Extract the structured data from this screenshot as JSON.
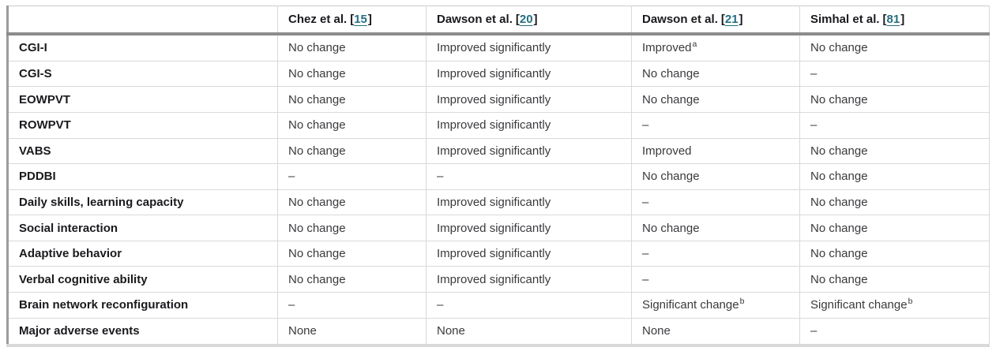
{
  "colors": {
    "citation_link": "#256f80",
    "header_rule": "#8c8c8c",
    "row_rule": "#d9d9d9",
    "left_edge_rule": "#9c9c9c",
    "bottom_rule": "#d9d9d9",
    "label_text": "#1a1a1e",
    "cell_text": "#3a3a3e",
    "background": "#ffffff"
  },
  "table": {
    "header": {
      "measure_column_label": "",
      "citation_brackets": [
        "[",
        "]"
      ],
      "studies": [
        {
          "author": "Chez et al.",
          "citation": "15"
        },
        {
          "author": "Dawson et al.",
          "citation": "20"
        },
        {
          "author": "Dawson et al.",
          "citation": "21"
        },
        {
          "author": "Simhal et al.",
          "citation": "81"
        }
      ]
    },
    "rows": [
      {
        "measure": "CGI-I",
        "cells": [
          {
            "text": "No change"
          },
          {
            "text": "Improved significantly"
          },
          {
            "text": "Improved",
            "sup": "a"
          },
          {
            "text": "No change"
          }
        ]
      },
      {
        "measure": "CGI-S",
        "cells": [
          {
            "text": "No change"
          },
          {
            "text": "Improved significantly"
          },
          {
            "text": "No change"
          },
          {
            "text": "–"
          }
        ]
      },
      {
        "measure": "EOWPVT",
        "cells": [
          {
            "text": "No change"
          },
          {
            "text": "Improved significantly"
          },
          {
            "text": "No change"
          },
          {
            "text": "No change"
          }
        ]
      },
      {
        "measure": "ROWPVT",
        "cells": [
          {
            "text": "No change"
          },
          {
            "text": "Improved significantly"
          },
          {
            "text": "–"
          },
          {
            "text": "–"
          }
        ]
      },
      {
        "measure": "VABS",
        "cells": [
          {
            "text": "No change"
          },
          {
            "text": "Improved significantly"
          },
          {
            "text": "Improved"
          },
          {
            "text": "No change"
          }
        ]
      },
      {
        "measure": "PDDBI",
        "cells": [
          {
            "text": "–"
          },
          {
            "text": "–"
          },
          {
            "text": "No change"
          },
          {
            "text": "No change"
          }
        ]
      },
      {
        "measure": "Daily skills, learning capacity",
        "cells": [
          {
            "text": "No change"
          },
          {
            "text": "Improved significantly"
          },
          {
            "text": "–"
          },
          {
            "text": "No change"
          }
        ]
      },
      {
        "measure": "Social interaction",
        "cells": [
          {
            "text": "No change"
          },
          {
            "text": "Improved significantly"
          },
          {
            "text": "No change"
          },
          {
            "text": "No change"
          }
        ]
      },
      {
        "measure": "Adaptive behavior",
        "cells": [
          {
            "text": "No change"
          },
          {
            "text": "Improved significantly"
          },
          {
            "text": "–"
          },
          {
            "text": "No change"
          }
        ]
      },
      {
        "measure": "Verbal cognitive ability",
        "cells": [
          {
            "text": "No change"
          },
          {
            "text": "Improved significantly"
          },
          {
            "text": "–"
          },
          {
            "text": "No change"
          }
        ]
      },
      {
        "measure": "Brain network reconfiguration",
        "cells": [
          {
            "text": "–"
          },
          {
            "text": "–"
          },
          {
            "text": "Significant change",
            "sup": "b"
          },
          {
            "text": "Significant change",
            "sup": "b"
          }
        ]
      },
      {
        "measure": "Major adverse events",
        "cells": [
          {
            "text": "None"
          },
          {
            "text": "None"
          },
          {
            "text": "None"
          },
          {
            "text": "–"
          }
        ]
      }
    ]
  }
}
